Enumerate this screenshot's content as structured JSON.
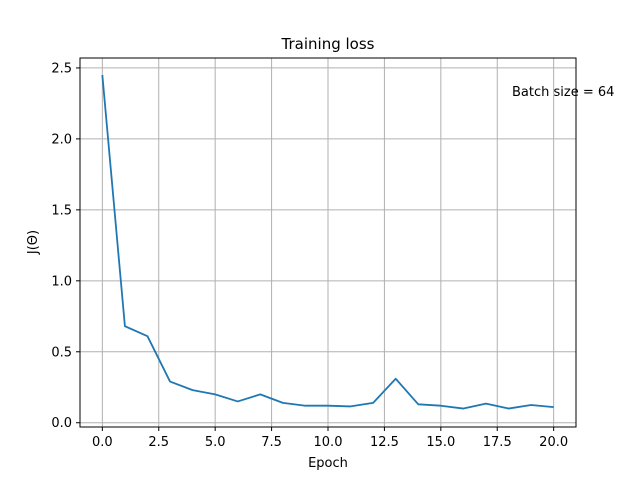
{
  "chart_data": {
    "type": "line",
    "title": "Training loss",
    "xlabel": "Epoch",
    "ylabel": "J(Θ)",
    "annotation": "Batch size = 64",
    "grid": true,
    "xlim": [
      -0.99,
      20.99
    ],
    "ylim": [
      -0.03,
      2.57
    ],
    "xticks": [
      0.0,
      2.5,
      5.0,
      7.5,
      10.0,
      12.5,
      15.0,
      17.5,
      20.0
    ],
    "xtick_labels": [
      "0.0",
      "2.5",
      "5.0",
      "7.5",
      "10.0",
      "12.5",
      "15.0",
      "17.5",
      "20.0"
    ],
    "yticks": [
      0.0,
      0.5,
      1.0,
      1.5,
      2.0,
      2.5
    ],
    "ytick_labels": [
      "0.0",
      "0.5",
      "1.0",
      "1.5",
      "2.0",
      "2.5"
    ],
    "series": [
      {
        "color": "#1f77b4",
        "x": [
          0,
          1,
          2,
          3,
          4,
          5,
          6,
          7,
          8,
          9,
          10,
          11,
          12,
          13,
          14,
          15,
          16,
          17,
          18,
          19,
          20
        ],
        "y": [
          2.45,
          0.68,
          0.61,
          0.29,
          0.23,
          0.2,
          0.15,
          0.2,
          0.14,
          0.12,
          0.12,
          0.115,
          0.14,
          0.31,
          0.13,
          0.12,
          0.1,
          0.135,
          0.1,
          0.125,
          0.11
        ]
      }
    ]
  }
}
